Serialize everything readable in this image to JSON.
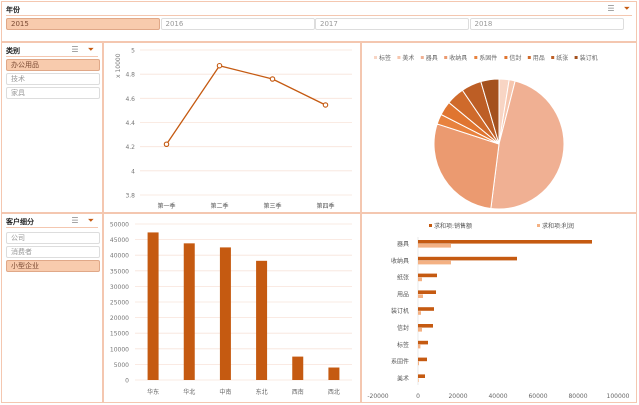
{
  "year_slicer": {
    "title": "年份",
    "items": [
      {
        "label": "2015",
        "selected": true
      },
      {
        "label": "2016",
        "selected": false
      },
      {
        "label": "2017",
        "selected": false
      },
      {
        "label": "2018",
        "selected": false
      }
    ]
  },
  "category_slicer": {
    "title": "类别",
    "items": [
      {
        "label": "办公用品",
        "selected": true
      },
      {
        "label": "技术",
        "selected": false
      },
      {
        "label": "家具",
        "selected": false
      }
    ]
  },
  "segment_slicer": {
    "title": "客户细分",
    "items": [
      {
        "label": "公司",
        "selected": false
      },
      {
        "label": "消费者",
        "selected": false
      },
      {
        "label": "小型企业",
        "selected": true
      }
    ]
  },
  "icons": {
    "multi_select": "multi-select-icon",
    "clear_filter": "clear-filter-icon"
  },
  "colors": {
    "accent": "#c55a11",
    "border": "#f4c7b0",
    "selected": "#f8cbad"
  },
  "chart_data": [
    {
      "type": "line",
      "categories": [
        "第一季",
        "第二季",
        "第三季",
        "第四季"
      ],
      "values": [
        4.22,
        4.87,
        4.76,
        4.545
      ],
      "ylabel": "x 10000",
      "ylim": [
        3.8,
        5
      ],
      "yticks": [
        "3.8",
        "4",
        "4.2",
        "4.4",
        "4.6",
        "4.8",
        "5"
      ],
      "color": "#c55a11"
    },
    {
      "type": "pie",
      "legend_position": "top",
      "categories": [
        "标签",
        "美术",
        "器具",
        "收纳具",
        "系固件",
        "信封",
        "用品",
        "纸张",
        "装订机"
      ],
      "values": [
        2.5,
        1.5,
        48,
        28,
        2.5,
        3.5,
        4.5,
        5,
        4.5
      ],
      "colors": [
        "#f8d5c4",
        "#f6c6ae",
        "#f0b093",
        "#eb9a70",
        "#e8823e",
        "#e07530",
        "#cf6a2b",
        "#bd5e25",
        "#a4511e"
      ]
    },
    {
      "type": "bar",
      "categories": [
        "华东",
        "华北",
        "中南",
        "东北",
        "西南",
        "西北"
      ],
      "values": [
        47300,
        43800,
        42500,
        38200,
        7500,
        4000
      ],
      "ylim": [
        0,
        50000
      ],
      "yticks": [
        "0",
        "5000",
        "10000",
        "15000",
        "20000",
        "25000",
        "30000",
        "35000",
        "40000",
        "45000",
        "50000"
      ],
      "color": "#c55a11"
    },
    {
      "type": "bar",
      "orientation": "horizontal",
      "categories": [
        "器具",
        "收纳具",
        "纸张",
        "用品",
        "装订机",
        "信封",
        "标签",
        "系固件",
        "美术"
      ],
      "series": [
        {
          "name": "求和项:销售额",
          "values": [
            87000,
            49500,
            9500,
            9000,
            8000,
            7500,
            5000,
            4500,
            3500
          ],
          "color": "#c55a11"
        },
        {
          "name": "求和项:利润",
          "values": [
            16500,
            16500,
            2000,
            2500,
            1500,
            2000,
            1200,
            500,
            300
          ],
          "color": "#f4b183"
        }
      ],
      "xlim": [
        -20000,
        100000
      ],
      "xticks": [
        "-20000",
        "0",
        "20000",
        "40000",
        "60000",
        "80000",
        "100000"
      ]
    }
  ]
}
